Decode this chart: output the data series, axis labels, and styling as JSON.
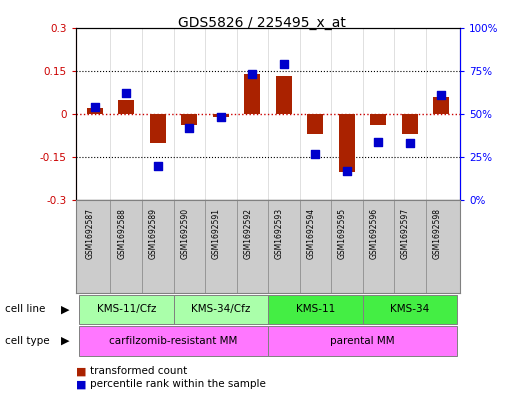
{
  "title": "GDS5826 / 225495_x_at",
  "samples": [
    "GSM1692587",
    "GSM1692588",
    "GSM1692589",
    "GSM1692590",
    "GSM1692591",
    "GSM1692592",
    "GSM1692593",
    "GSM1692594",
    "GSM1692595",
    "GSM1692596",
    "GSM1692597",
    "GSM1692598"
  ],
  "red_values": [
    0.02,
    0.05,
    -0.1,
    -0.04,
    -0.01,
    0.138,
    0.133,
    -0.07,
    -0.2,
    -0.04,
    -0.07,
    0.06
  ],
  "blue_values": [
    54,
    62,
    20,
    42,
    48,
    73,
    79,
    27,
    17,
    34,
    33,
    61
  ],
  "ylim_left": [
    -0.3,
    0.3
  ],
  "ylim_right": [
    0,
    100
  ],
  "yticks_left": [
    -0.3,
    -0.15,
    0.0,
    0.15,
    0.3
  ],
  "yticks_right": [
    0,
    25,
    50,
    75,
    100
  ],
  "ytick_labels_left": [
    "-0.3",
    "-0.15",
    "0",
    "0.15",
    "0.3"
  ],
  "ytick_labels_right": [
    "0%",
    "25%",
    "50%",
    "75%",
    "100%"
  ],
  "hlines_dotted": [
    -0.15,
    0.15
  ],
  "cell_line_colors": [
    "#aaffaa",
    "#aaffaa",
    "#44ee44",
    "#44ee44"
  ],
  "cell_line_labels": [
    "KMS-11/Cfz",
    "KMS-34/Cfz",
    "KMS-11",
    "KMS-34"
  ],
  "cell_line_starts": [
    0,
    3,
    6,
    9
  ],
  "cell_line_ends": [
    2,
    5,
    8,
    11
  ],
  "cell_type_labels": [
    "carfilzomib-resistant MM",
    "parental MM"
  ],
  "cell_type_starts": [
    0,
    6
  ],
  "cell_type_ends": [
    5,
    11
  ],
  "cell_type_color": "#ff77ff",
  "legend_red": "transformed count",
  "legend_blue": "percentile rank within the sample",
  "bar_color": "#aa2200",
  "dot_color": "#0000cc",
  "zero_line_color": "#cc0000",
  "background_color": "#ffffff",
  "label_bg_color": "#cccccc"
}
